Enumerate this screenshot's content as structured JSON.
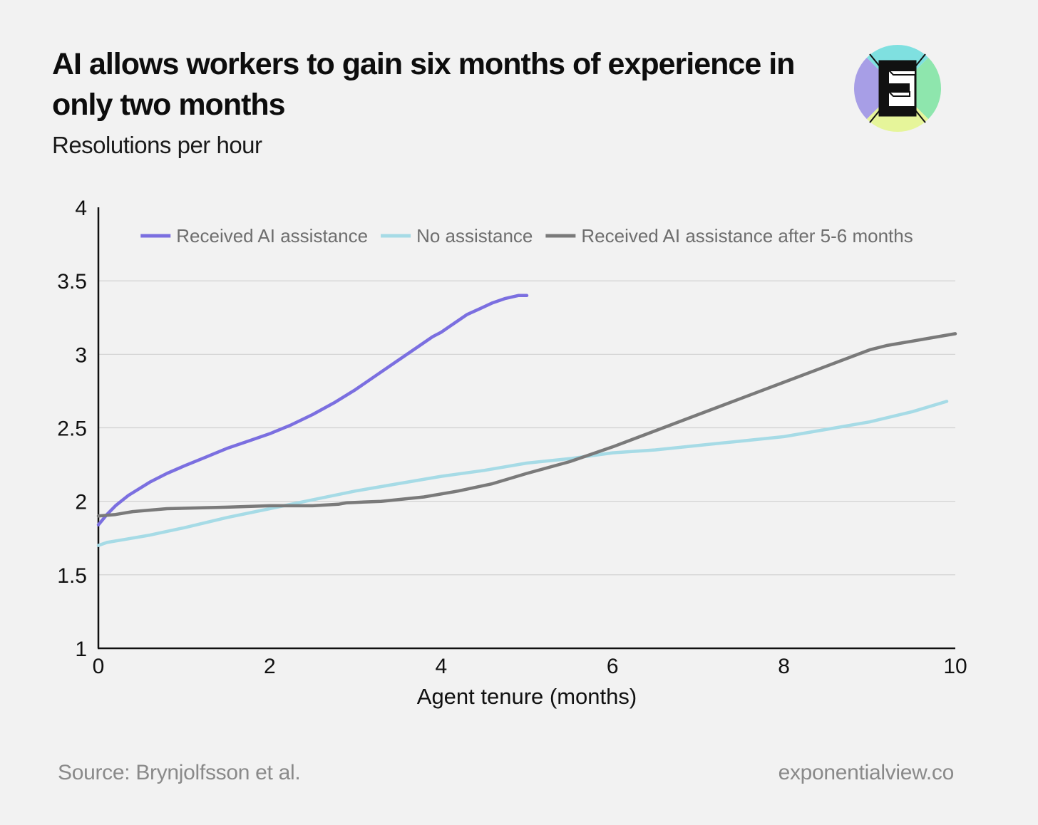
{
  "header": {
    "title": "AI allows workers to gain six months of experience in only two months",
    "subtitle": "Resolutions per hour"
  },
  "logo": {
    "name": "exponential-view-logo",
    "letter": "E",
    "colors": [
      "#a79ee6",
      "#7fe0e0",
      "#8ee6ad",
      "#e6f59a"
    ]
  },
  "footer": {
    "source": "Source: Brynjolfsson et al.",
    "site": "exponentialview.co"
  },
  "chart_data": {
    "type": "line",
    "xlabel": "Agent tenure (months)",
    "ylabel": "",
    "xlim": [
      0,
      10
    ],
    "ylim": [
      1,
      4
    ],
    "xticks": [
      0,
      2,
      4,
      6,
      8,
      10
    ],
    "xtick_labels": [
      "0",
      "2",
      "4",
      "6",
      "8",
      "10"
    ],
    "yticks": [
      1,
      1.5,
      2,
      2.5,
      3,
      3.5,
      4
    ],
    "ytick_labels": [
      "1",
      "1.5",
      "2",
      "2.5",
      "3",
      "3.5",
      "4"
    ],
    "grid": "horizontal",
    "legend": "top",
    "series": [
      {
        "name": "Received AI assistance",
        "color": "#7b6fe0",
        "x": [
          0,
          0.1,
          0.2,
          0.35,
          0.6,
          0.8,
          1.0,
          1.25,
          1.5,
          1.75,
          2.0,
          2.25,
          2.5,
          2.75,
          3.0,
          3.25,
          3.5,
          3.75,
          3.9,
          4.0,
          4.15,
          4.3,
          4.45,
          4.6,
          4.75,
          4.9,
          5.0
        ],
        "y": [
          1.84,
          1.91,
          1.97,
          2.04,
          2.13,
          2.19,
          2.24,
          2.3,
          2.36,
          2.41,
          2.46,
          2.52,
          2.59,
          2.67,
          2.76,
          2.86,
          2.96,
          3.06,
          3.12,
          3.15,
          3.21,
          3.27,
          3.31,
          3.35,
          3.38,
          3.4,
          3.4
        ]
      },
      {
        "name": "No assistance",
        "color": "#a6dbe6",
        "x": [
          0,
          0.1,
          0.3,
          0.6,
          1.0,
          1.5,
          2.0,
          2.5,
          3.0,
          3.5,
          4.0,
          4.5,
          5.0,
          5.5,
          6.0,
          6.5,
          7.0,
          7.5,
          8.0,
          8.5,
          9.0,
          9.5,
          9.9
        ],
        "y": [
          1.7,
          1.72,
          1.74,
          1.77,
          1.82,
          1.89,
          1.95,
          2.01,
          2.07,
          2.12,
          2.17,
          2.21,
          2.26,
          2.29,
          2.33,
          2.35,
          2.38,
          2.41,
          2.44,
          2.49,
          2.54,
          2.61,
          2.68
        ]
      },
      {
        "name": "Received AI assistance after 5-6 months",
        "color": "#7a7a7a",
        "x": [
          0,
          0.2,
          0.4,
          0.8,
          1.5,
          2.0,
          2.5,
          2.8,
          2.9,
          3.3,
          3.8,
          4.2,
          4.6,
          5.0,
          5.5,
          6.0,
          6.5,
          7.0,
          7.5,
          8.0,
          8.5,
          9.0,
          9.2,
          9.5,
          9.7,
          10.0
        ],
        "y": [
          1.9,
          1.91,
          1.93,
          1.95,
          1.96,
          1.97,
          1.97,
          1.98,
          1.99,
          2.0,
          2.03,
          2.07,
          2.12,
          2.19,
          2.27,
          2.37,
          2.48,
          2.59,
          2.7,
          2.81,
          2.92,
          3.03,
          3.06,
          3.09,
          3.11,
          3.14
        ]
      }
    ]
  }
}
